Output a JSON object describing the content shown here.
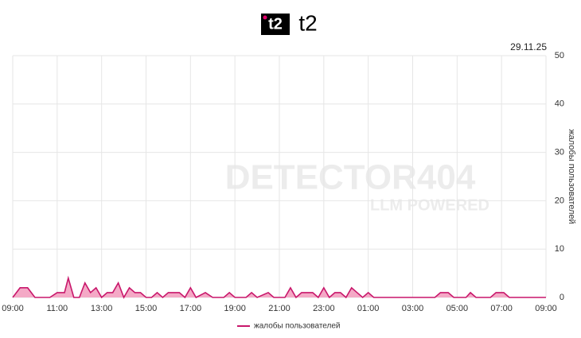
{
  "brand": "t2",
  "chart_data": {
    "type": "area",
    "date": "29.11.25",
    "y_label": "жалобы пользователей",
    "watermark": {
      "title": "DETECTOR404",
      "subtitle": "LLM POWERED"
    },
    "x": [
      9.0,
      9.33,
      9.67,
      10.0,
      10.67,
      11.0,
      11.33,
      11.5,
      11.75,
      12.0,
      12.25,
      12.5,
      12.75,
      13.0,
      13.25,
      13.5,
      13.75,
      14.0,
      14.25,
      14.5,
      14.75,
      15.0,
      15.25,
      15.5,
      15.75,
      16.0,
      16.5,
      16.75,
      17.0,
      17.25,
      17.67,
      18.0,
      18.5,
      18.75,
      19.0,
      19.5,
      19.75,
      20.0,
      20.5,
      20.75,
      21.25,
      21.5,
      21.75,
      22.0,
      22.5,
      22.75,
      23.0,
      23.25,
      23.5,
      23.75,
      24.0,
      24.25,
      24.5,
      24.75,
      25.0,
      25.25,
      28.0,
      28.25,
      28.6,
      28.85,
      29.4,
      29.6,
      29.85,
      30.5,
      30.75,
      31.1,
      31.35,
      33.0
    ],
    "series": [
      {
        "name": "жалобы пользователей",
        "color": "#c8176b",
        "fill": "#f4a9c6",
        "values": [
          0,
          2,
          2,
          0,
          0,
          1,
          1,
          4,
          0,
          0,
          3,
          1,
          2,
          0,
          1,
          1,
          3,
          0,
          2,
          1,
          1,
          0,
          0,
          1,
          0,
          1,
          1,
          0,
          2,
          0,
          1,
          0,
          0,
          1,
          0,
          0,
          1,
          0,
          1,
          0,
          0,
          2,
          0,
          1,
          1,
          0,
          2,
          0,
          1,
          1,
          0,
          2,
          1,
          0,
          1,
          0,
          0,
          1,
          1,
          0,
          0,
          1,
          0,
          0,
          1,
          1,
          0,
          0
        ]
      }
    ],
    "xlim": [
      9,
      33
    ],
    "ylim": [
      0,
      50
    ],
    "xticks": [
      {
        "value": 9,
        "label": "09:00"
      },
      {
        "value": 11,
        "label": "11:00"
      },
      {
        "value": 13,
        "label": "13:00"
      },
      {
        "value": 15,
        "label": "15:00"
      },
      {
        "value": 17,
        "label": "17:00"
      },
      {
        "value": 19,
        "label": "19:00"
      },
      {
        "value": 21,
        "label": "21:00"
      },
      {
        "value": 23,
        "label": "23:00"
      },
      {
        "value": 25,
        "label": "01:00"
      },
      {
        "value": 27,
        "label": "03:00"
      },
      {
        "value": 29,
        "label": "05:00"
      },
      {
        "value": 31,
        "label": "07:00"
      },
      {
        "value": 33,
        "label": "09:00"
      }
    ],
    "yticks": [
      0,
      10,
      20,
      30,
      40,
      50
    ],
    "grid": true,
    "legend": "bottom"
  }
}
